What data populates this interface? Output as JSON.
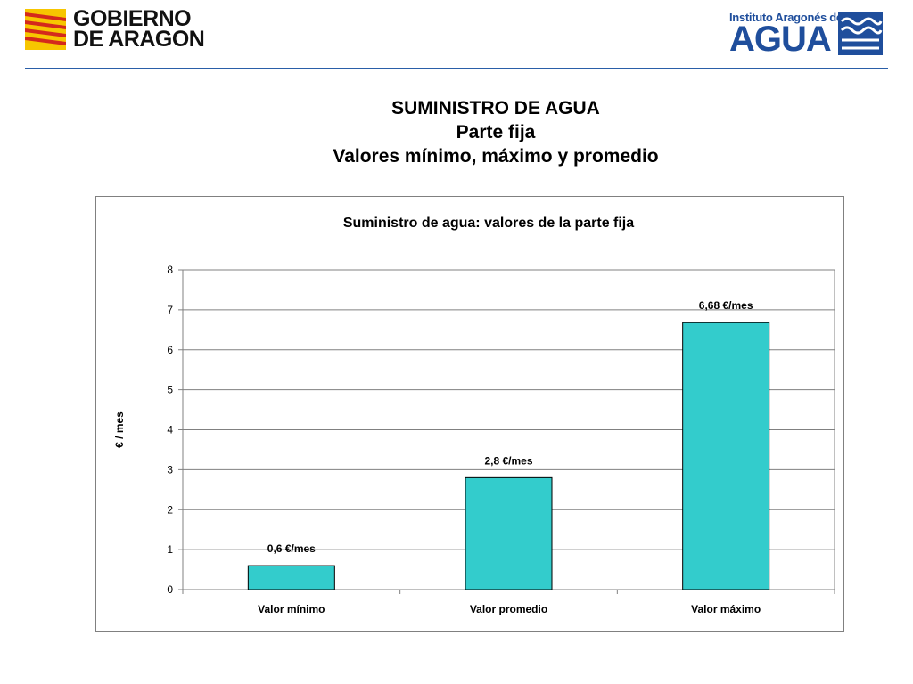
{
  "header": {
    "gov_logo_line1": "GOBIERNO",
    "gov_logo_line2": "DE ARAGON",
    "institute_top": "Instituto Aragonés del",
    "institute_main": "AGUA",
    "rule_color": "#2a5ea8"
  },
  "slide": {
    "title_line1": "SUMINISTRO DE AGUA",
    "title_line2": "Parte fija",
    "title_line3": "Valores mínimo, máximo y promedio"
  },
  "chart_data": {
    "type": "bar",
    "title": "Suministro de agua: valores de la parte fija",
    "xlabel": "",
    "ylabel": "€ / mes",
    "categories": [
      "Valor mínimo",
      "Valor promedio",
      "Valor máximo"
    ],
    "values": [
      0.6,
      2.8,
      6.68
    ],
    "data_labels": [
      "0,6 €/mes",
      "2,8 €/mes",
      "6,68 €/mes"
    ],
    "ylim": [
      0,
      8
    ],
    "yticks": [
      0,
      1,
      2,
      3,
      4,
      5,
      6,
      7,
      8
    ],
    "grid": true,
    "legend": "none",
    "bar_color": "#33cccc"
  }
}
